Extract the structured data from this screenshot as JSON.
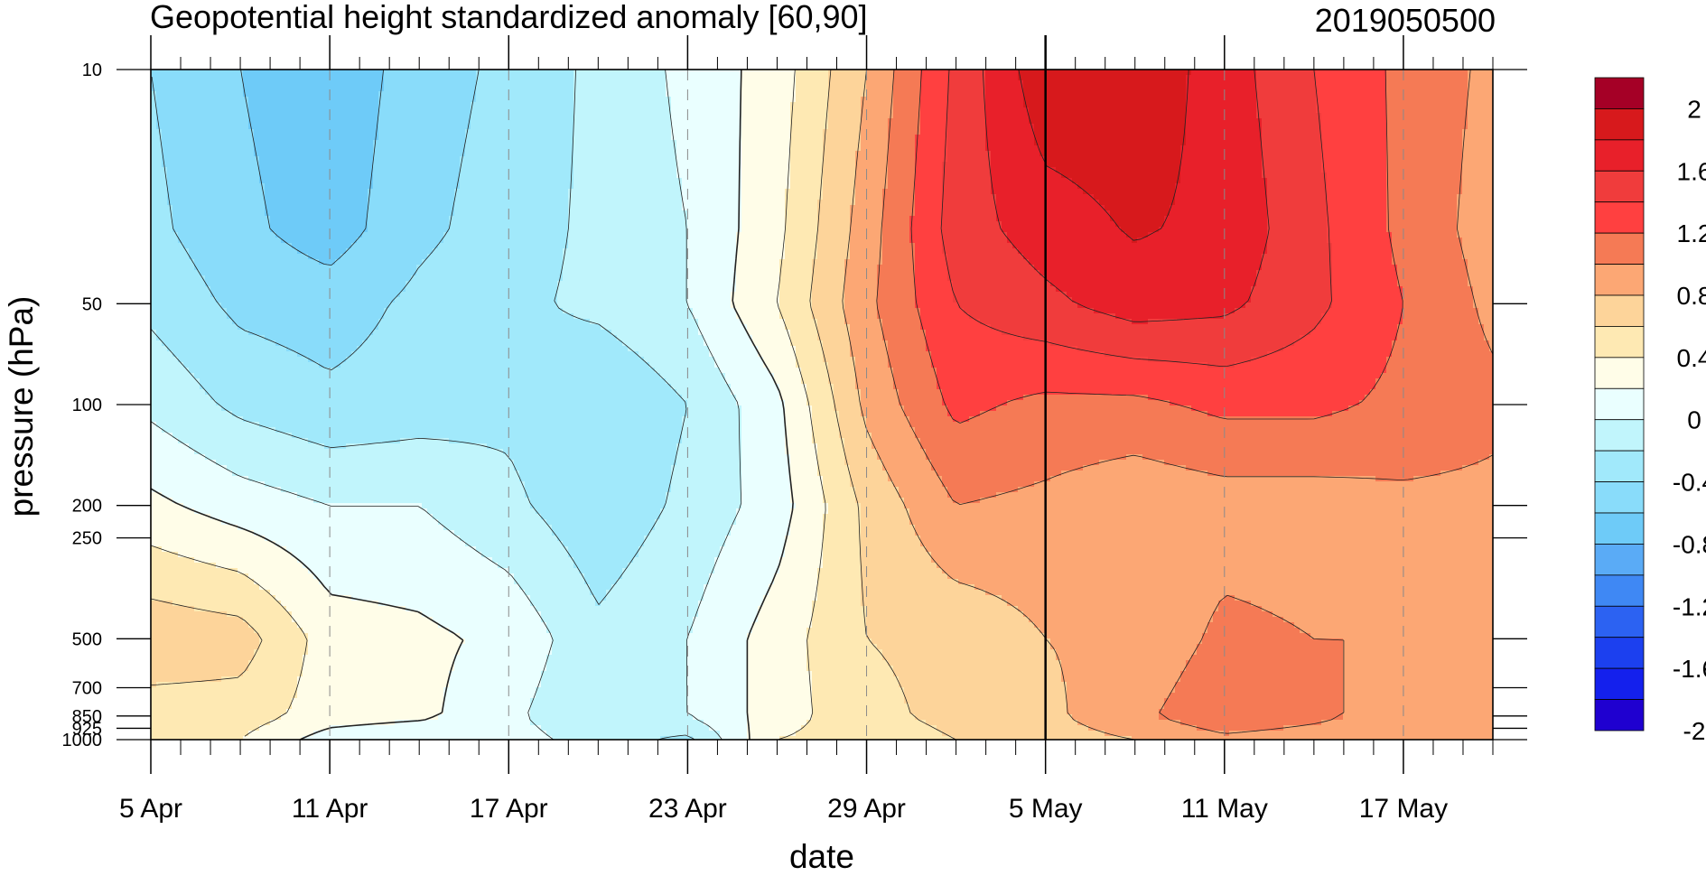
{
  "header": {
    "title": "Geopotential height standardized anomaly [60,90]",
    "timestamp": "2019050500"
  },
  "chart_data": {
    "type": "heatmap",
    "title": "Geopotential height standardized anomaly [60,90]",
    "xlabel": "date",
    "ylabel": "pressure (hPa)",
    "x_ticks": [
      "5 Apr",
      "11 Apr",
      "17 Apr",
      "23 Apr",
      "29 Apr",
      "5 May",
      "11 May",
      "17 May"
    ],
    "x_tick_days": [
      0,
      6,
      12,
      18,
      24,
      30,
      36,
      42
    ],
    "xlim_days": [
      0,
      45
    ],
    "current_day": 30,
    "y_ticks": [
      "10",
      "50",
      "100",
      "200",
      "250",
      "500",
      "700",
      "850",
      "925",
      "1000"
    ],
    "y_tick_values": [
      10,
      50,
      100,
      200,
      250,
      500,
      700,
      850,
      925,
      1000
    ],
    "y_scale": "log-pressure",
    "levels": [
      -2.2,
      -2.0,
      -1.8,
      -1.6,
      -1.4,
      -1.2,
      -1.0,
      -0.8,
      -0.6,
      -0.4,
      -0.2,
      0,
      0.2,
      0.4,
      0.6,
      0.8,
      1.0,
      1.2,
      1.4,
      1.6,
      1.8,
      2.0,
      2.2
    ],
    "colorbar_labels": [
      "2",
      "1.6",
      "1.2",
      "0.8",
      "0.4",
      "0",
      "-0.4",
      "-0.8",
      "-1.2",
      "-1.6",
      "-2"
    ],
    "colorbar_colors": [
      "#a50026",
      "#d7191c",
      "#e8202a",
      "#f03c3c",
      "#ff4040",
      "#f57a55",
      "#fca774",
      "#fdd49a",
      "#fee9b3",
      "#fffde8",
      "#eaffff",
      "#c1f5fc",
      "#a1e9fb",
      "#89dcfa",
      "#6ecbf8",
      "#5aabf6",
      "#3f88f4",
      "#2c62f2",
      "#1c40ef",
      "#1420ed",
      "#1f00d0"
    ],
    "grid_days": [
      0,
      3,
      6,
      9,
      12,
      15,
      18,
      21,
      24,
      27,
      30,
      33,
      36,
      39,
      42,
      45
    ],
    "grid_levels": [
      10,
      30,
      50,
      100,
      200,
      500,
      850,
      1000
    ],
    "values": [
      [
        -0.6,
        -0.8,
        -0.95,
        -0.7,
        -0.55,
        -0.35,
        -0.15,
        0.1,
        0.6,
        1.25,
        1.75,
        1.75,
        1.5,
        1.2,
        0.95,
        0.75
      ],
      [
        -0.55,
        -0.75,
        -0.9,
        -0.65,
        -0.5,
        -0.35,
        -0.2,
        0.15,
        0.7,
        1.3,
        1.5,
        1.62,
        1.55,
        1.25,
        0.95,
        0.7
      ],
      [
        -0.45,
        -0.65,
        -0.7,
        -0.55,
        -0.45,
        -0.35,
        -0.2,
        0.2,
        0.75,
        1.2,
        1.35,
        1.5,
        1.45,
        1.25,
        1.0,
        0.75
      ],
      [
        -0.25,
        -0.45,
        -0.55,
        -0.5,
        -0.45,
        -0.6,
        -0.4,
        -0.05,
        0.65,
        1.05,
        0.95,
        0.95,
        1.05,
        1.05,
        0.95,
        0.85
      ],
      [
        0.05,
        -0.1,
        -0.2,
        -0.2,
        -0.35,
        -0.55,
        -0.35,
        -0.1,
        0.45,
        0.8,
        0.75,
        0.65,
        0.7,
        0.7,
        0.75,
        0.75
      ],
      [
        0.55,
        0.5,
        0.1,
        0.05,
        -0.05,
        -0.35,
        -0.2,
        0.1,
        0.4,
        0.45,
        0.6,
        0.65,
        0.85,
        0.8,
        0.8,
        0.6
      ],
      [
        0.3,
        0.3,
        0.1,
        0.05,
        -0.15,
        -0.4,
        -0.2,
        0.1,
        0.35,
        0.45,
        0.55,
        0.75,
        0.95,
        0.85,
        0.7,
        0.6
      ],
      [
        0.2,
        0.2,
        -0.1,
        -0.2,
        -0.1,
        -0.3,
        -0.45,
        0.2,
        0.3,
        0.4,
        0.5,
        0.6,
        0.75,
        0.7,
        0.65,
        0.6
      ]
    ]
  }
}
